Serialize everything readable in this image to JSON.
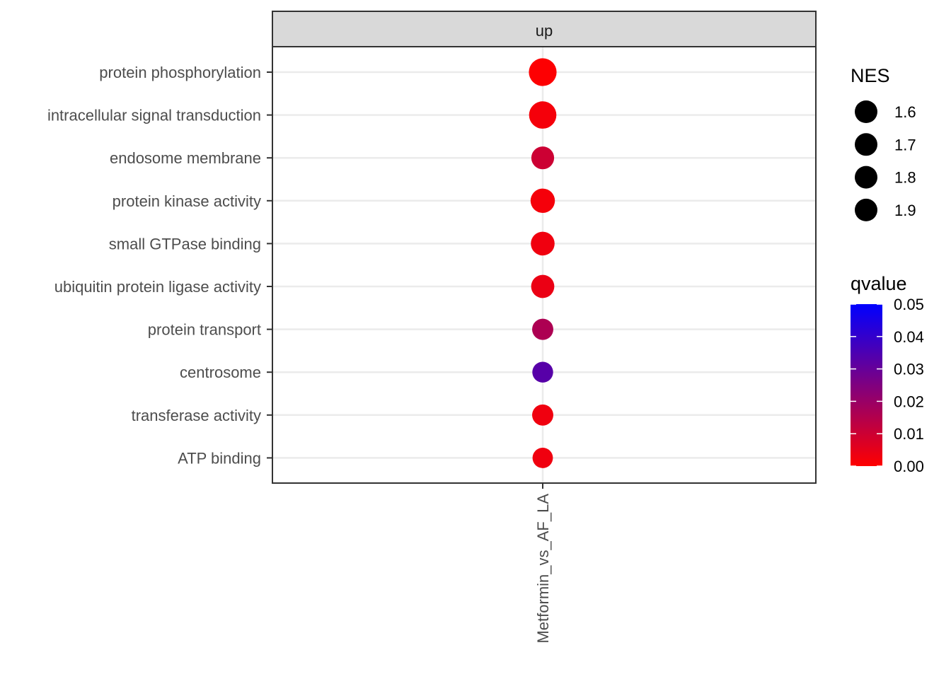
{
  "chart_data": {
    "type": "scatter",
    "facet_label": "up",
    "x_categories": [
      "Metformin_vs_AF_LA"
    ],
    "y_categories": [
      "protein phosphorylation",
      "intracellular signal transduction",
      "endosome membrane",
      "protein kinase activity",
      "small GTPase binding",
      "ubiquitin protein ligase activity",
      "protein transport",
      "centrosome",
      "transferase activity",
      "ATP binding"
    ],
    "points": [
      {
        "x": "Metformin_vs_AF_LA",
        "y": "protein phosphorylation",
        "NES": 1.95,
        "qvalue": 0.0003
      },
      {
        "x": "Metformin_vs_AF_LA",
        "y": "intracellular signal transduction",
        "NES": 1.93,
        "qvalue": 0.002
      },
      {
        "x": "Metformin_vs_AF_LA",
        "y": "endosome membrane",
        "NES": 1.7,
        "qvalue": 0.01
      },
      {
        "x": "Metformin_vs_AF_LA",
        "y": "protein kinase activity",
        "NES": 1.78,
        "qvalue": 0.002
      },
      {
        "x": "Metformin_vs_AF_LA",
        "y": "small GTPase binding",
        "NES": 1.75,
        "qvalue": 0.003
      },
      {
        "x": "Metformin_vs_AF_LA",
        "y": "ubiquitin protein ligase activity",
        "NES": 1.72,
        "qvalue": 0.004
      },
      {
        "x": "Metformin_vs_AF_LA",
        "y": "protein transport",
        "NES": 1.62,
        "qvalue": 0.016
      },
      {
        "x": "Metformin_vs_AF_LA",
        "y": "centrosome",
        "NES": 1.6,
        "qvalue": 0.033
      },
      {
        "x": "Metformin_vs_AF_LA",
        "y": "transferase activity",
        "NES": 1.62,
        "qvalue": 0.003
      },
      {
        "x": "Metformin_vs_AF_LA",
        "y": "ATP binding",
        "NES": 1.58,
        "qvalue": 0.003
      }
    ],
    "size_legend": {
      "title": "NES",
      "values": [
        1.6,
        1.7,
        1.8,
        1.9
      ],
      "labels": [
        "1.6",
        "1.7",
        "1.8",
        "1.9"
      ]
    },
    "color_legend": {
      "title": "qvalue",
      "range": [
        0,
        0.05
      ],
      "low_color": "#ff0000",
      "high_color": "#0000ff",
      "labels": [
        "0.05",
        "0.04",
        "0.03",
        "0.02",
        "0.01",
        "0.00"
      ],
      "values": [
        0.05,
        0.04,
        0.03,
        0.02,
        0.01,
        0.0
      ]
    },
    "grid": true,
    "legend_position": "right",
    "colors": {
      "grid": "#ebebeb",
      "panel_border": "#333333",
      "strip_fill": "#d9d9d9"
    }
  }
}
